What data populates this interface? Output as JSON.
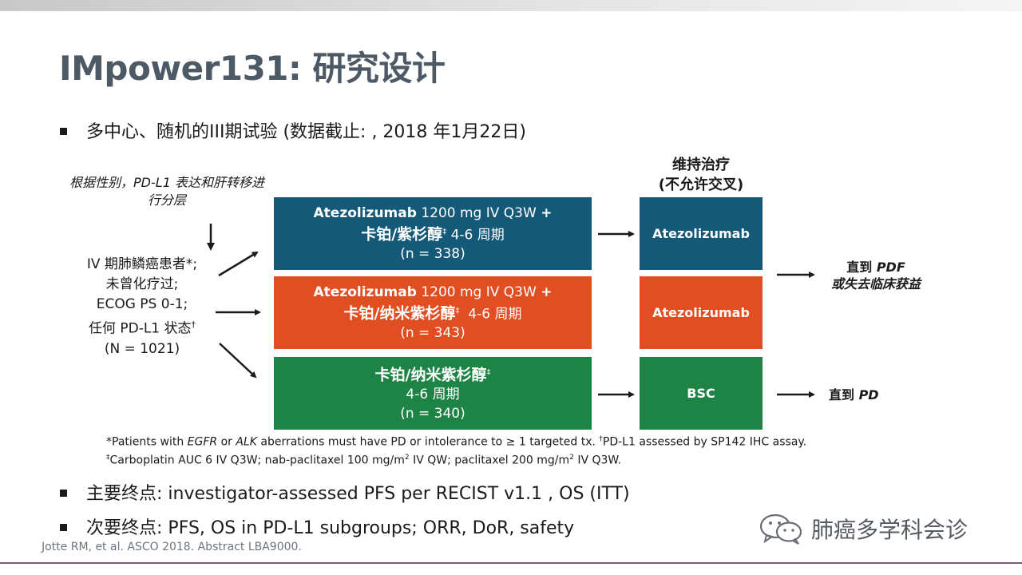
{
  "title": "IMpower131: 研究设计",
  "bullets": {
    "design": "多中心、随机的III期试验 (数据截止: , 2018 年1月22日)",
    "primary_label": "主要终点",
    "primary_text": ": investigator-assessed PFS per RECIST v1.1 , OS (ITT)",
    "secondary_label": "次要终点",
    "secondary_text": ": PFS, OS in PD-L1 subgroups; ORR, DoR, safety"
  },
  "stratification": "根据性别，PD-L1 表达和肝转移进行分层",
  "patients": {
    "line1": "IV 期肺鳞癌患者*;",
    "line2": "未曾化疗过;",
    "line3": "ECOG PS 0-1;",
    "line4": "任何 PD-L1 状态",
    "line4_sup": "†",
    "line5": "(N = 1021)"
  },
  "maintenance_header": {
    "line1": "维持治疗",
    "line2": "(不允许交叉)"
  },
  "arms": [
    {
      "drug": "Atezolizumab",
      "dose": " 1200 mg IV Q3W ",
      "plus": "+",
      "combo": "卡铂/紫杉醇",
      "combo_sup": "‡",
      "cycles": " 4-6 周期",
      "n": "(n = 338)",
      "maintenance": "Atezolizumab",
      "color": "#145a78"
    },
    {
      "drug": "Atezolizumab",
      "dose": " 1200 mg IV Q3W ",
      "plus": "+",
      "combo": "卡铂/纳米紫杉醇",
      "combo_sup": "‡",
      "cycles": "  4-6 周期",
      "n": "(n = 343)",
      "maintenance": "Atezolizumab",
      "color": "#e04e22"
    },
    {
      "combo": "卡铂/纳米紫杉醇",
      "combo_sup": "‡",
      "cycles": "4-6 周期",
      "n": "(n = 340)",
      "maintenance": "BSC",
      "color": "#1d8445"
    }
  ],
  "outcomes": {
    "top_line1_a": "直到 ",
    "top_line1_b": "PDF",
    "top_line2": "或失去临床获益",
    "bottom_a": "直到 ",
    "bottom_b": "PD"
  },
  "footnotes": {
    "line1_a": "*Patients with ",
    "line1_b": "EGFR",
    "line1_c": " or ",
    "line1_d": "ALK",
    "line1_e": " aberrations must have PD or intolerance to ≥ 1 targeted tx. ",
    "line1_f": "†",
    "line1_g": "PD-L1 assessed by SP142 IHC assay.",
    "line2_a": "‡",
    "line2_b": "Carboplatin AUC 6 IV Q3W; nab-paclitaxel 100 mg/m",
    "line2_c": "2",
    "line2_d": " IV QW; paclitaxel 200 mg/m",
    "line2_e": "2",
    "line2_f": " IV Q3W."
  },
  "citation": "Jotte RM, et al. ASCO 2018. Abstract LBA9000.",
  "watermark": "肺癌多学科会诊",
  "colors": {
    "title": "#4d5a66",
    "teal": "#145a78",
    "orange": "#e04e22",
    "green": "#1d8445"
  },
  "icons": [
    "wechat-icon",
    "arrow-right-icon",
    "arrow-down-icon"
  ]
}
